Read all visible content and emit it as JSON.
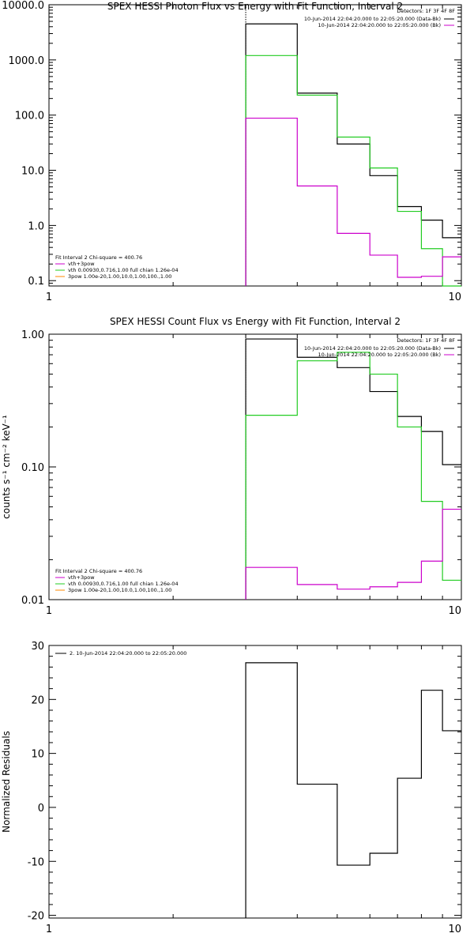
{
  "chart_data": [
    {
      "type": "line",
      "title": "SPEX HESSI Photon Flux vs Energy with Fit Function, Interval 2",
      "xlabel": "",
      "ylabel": "",
      "xscale": "log",
      "yscale": "log",
      "xlim": [
        1,
        10
      ],
      "ylim": [
        0.08,
        10000
      ],
      "x_ticks": [
        "1",
        "10"
      ],
      "y_ticks": [
        {
          "value": 10000,
          "label": "10000.0"
        },
        {
          "value": 1000,
          "label": "1000.0"
        },
        {
          "value": 100,
          "label": "100.0"
        },
        {
          "value": 10,
          "label": "10.0"
        },
        {
          "value": 1,
          "label": "1.0"
        },
        {
          "value": 0.1,
          "label": "0.1"
        }
      ],
      "edges": [
        3,
        4,
        5,
        6,
        7,
        8,
        9,
        10
      ],
      "marker_x": 3,
      "legend_top": {
        "header": "Detectors: 1F 3F 4F 8F",
        "entries": [
          {
            "text": "10-Jun-2014 22:04:20.000 to 22:05:20.000 (Data-Bk)",
            "color": "#000000"
          },
          {
            "text": "10-Jun-2014 22:04:20.000 to 22:05:20.000 (Bk)",
            "color": "#cc00cc"
          }
        ]
      },
      "legend_bottom": {
        "header": "Fit Interval  2   Chi-square = 400.76",
        "entries": [
          {
            "text": "vth+3pow",
            "color": "#cc00cc"
          },
          {
            "text": "vth 0.00930,0.716,1.00   full chian 1.26e-04",
            "color": "#22cc22"
          },
          {
            "text": "3pow 1.00e-20,1.00,10.0,1.00,100.,1.00",
            "color": "#ff8800"
          }
        ]
      },
      "series": [
        {
          "color": "#000000",
          "values": [
            4500,
            250,
            30,
            8,
            2.2,
            1.25,
            0.6
          ]
        },
        {
          "color": "#22cc22",
          "values": [
            1200,
            230,
            40,
            11,
            1.8,
            0.38,
            0.07
          ]
        },
        {
          "color": "#cc00cc",
          "values": [
            88,
            5.2,
            0.72,
            0.29,
            0.115,
            0.12,
            0.27
          ]
        }
      ]
    },
    {
      "type": "line",
      "title": "SPEX HESSI Count Flux vs Energy with Fit Function, Interval 2",
      "xlabel": "",
      "ylabel": "counts s⁻¹ cm⁻² keV⁻¹",
      "xscale": "log",
      "yscale": "log",
      "xlim": [
        1,
        10
      ],
      "ylim": [
        0.01,
        1
      ],
      "x_ticks": [
        "1",
        "10"
      ],
      "y_ticks": [
        {
          "value": 1,
          "label": "1.00"
        },
        {
          "value": 0.1,
          "label": "0.10"
        },
        {
          "value": 0.01,
          "label": "0.01"
        }
      ],
      "edges": [
        3,
        4,
        5,
        6,
        7,
        8,
        9,
        10
      ],
      "marker_x": 3,
      "legend_top": {
        "header": "Detectors: 1F 3F 4F 8F",
        "entries": [
          {
            "text": "10-Jun-2014 22:04:20.000 to 22:05:20.000 (Data-Bk)",
            "color": "#000000"
          },
          {
            "text": "10-Jun-2014 22:04:20.000 to 22:05:20.000 (Bk)",
            "color": "#cc00cc"
          }
        ]
      },
      "legend_bottom": {
        "header": "Fit Interval  2   Chi-square = 400.76",
        "entries": [
          {
            "text": "vth+3pow",
            "color": "#cc00cc"
          },
          {
            "text": "vth 0.00930,0.716,1.00   full chian 1.26e-04",
            "color": "#22cc22"
          },
          {
            "text": "3pow 1.00e-20,1.00,10.0,1.00,100.,1.00",
            "color": "#ff8800"
          }
        ]
      },
      "series": [
        {
          "color": "#000000",
          "values": [
            0.92,
            0.67,
            0.56,
            0.37,
            0.24,
            0.185,
            0.104
          ]
        },
        {
          "color": "#22cc22",
          "values": [
            0.245,
            0.63,
            0.73,
            0.5,
            0.2,
            0.055,
            0.014
          ]
        },
        {
          "color": "#cc00cc",
          "values": [
            0.0175,
            0.013,
            0.012,
            0.0125,
            0.0135,
            0.0195,
            0.048
          ]
        }
      ]
    },
    {
      "type": "line",
      "title": "",
      "xlabel": "",
      "ylabel": "Normalized Residuals",
      "xscale": "log",
      "yscale": "linear",
      "xlim": [
        1,
        10
      ],
      "ylim": [
        -20.5,
        30
      ],
      "x_ticks": [
        "1",
        "10"
      ],
      "y_ticks": [
        {
          "value": 30,
          "label": "30"
        },
        {
          "value": 20,
          "label": "20"
        },
        {
          "value": 10,
          "label": "10"
        },
        {
          "value": 0,
          "label": "0"
        },
        {
          "value": -10,
          "label": "-10"
        },
        {
          "value": -20,
          "label": "-20"
        }
      ],
      "edges": [
        3,
        4,
        5,
        6,
        7,
        8,
        9,
        10
      ],
      "drop_first": true,
      "legend_top": {
        "header": "",
        "entries": [
          {
            "text": "2. 10-Jun-2014 22:04:20.000 to 22:05:20.000",
            "color": "#000000"
          }
        ]
      },
      "series": [
        {
          "color": "#000000",
          "values": [
            26.8,
            4.3,
            -10.7,
            -8.5,
            5.4,
            21.7,
            14.2
          ]
        }
      ]
    }
  ]
}
